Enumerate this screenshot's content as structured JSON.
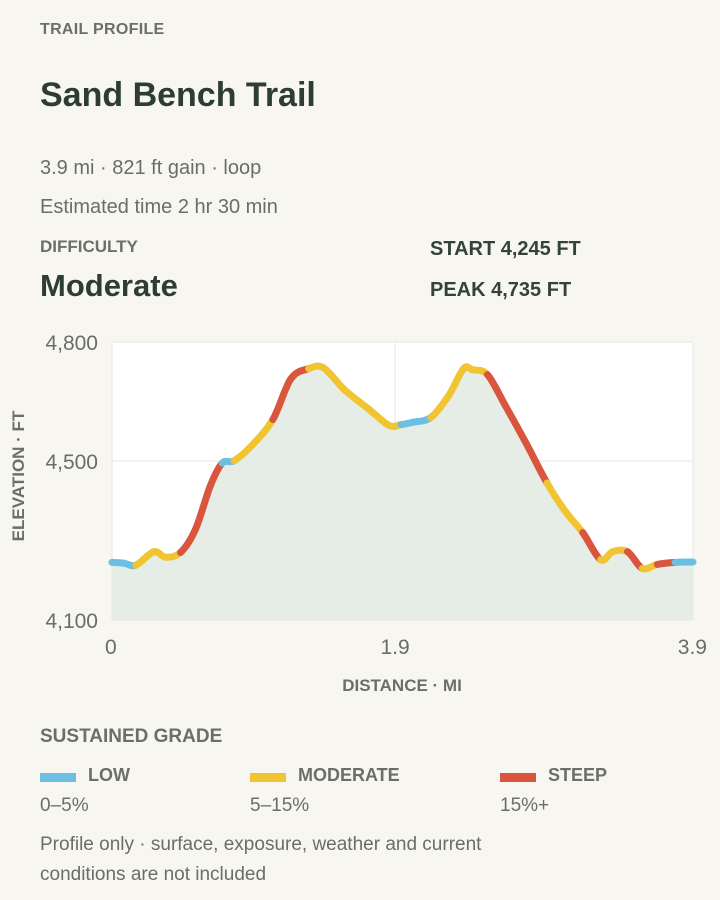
{
  "header": {
    "eyebrow": "TRAIL PROFILE",
    "title": "Sand Bench Trail",
    "summary": "3.9 mi · 821 ft gain · loop",
    "estimated_time": "Estimated time 2 hr 30 min"
  },
  "difficulty": {
    "label": "DIFFICULTY",
    "value": "Moderate"
  },
  "stats": {
    "start": "START 4,245 FT",
    "peak": "PEAK 4,735 FT"
  },
  "chart_data": {
    "type": "line",
    "title": "",
    "xlabel": "DISTANCE · MI",
    "ylabel": "ELEVATION · FT",
    "xlim": [
      0,
      3.9
    ],
    "ylim": [
      4100,
      4800
    ],
    "x_ticks": [
      0,
      1.9,
      3.9
    ],
    "x_tick_labels": [
      "0",
      "1.9",
      "3.9"
    ],
    "y_ticks": [
      4100,
      4500,
      4800
    ],
    "y_tick_labels": [
      "4,100",
      "4,500",
      "4,800"
    ],
    "grid": true,
    "area_fill": true,
    "line_colors_by_grade": {
      "low": "#6cbfe3",
      "moderate": "#f1c532",
      "steep": "#d9553e"
    },
    "x": [
      0,
      0.08,
      0.16,
      0.28,
      0.36,
      0.46,
      0.56,
      0.66,
      0.74,
      0.82,
      0.94,
      1.08,
      1.2,
      1.32,
      1.42,
      1.56,
      1.72,
      1.86,
      1.94,
      2.02,
      2.14,
      2.26,
      2.36,
      2.42,
      2.52,
      2.64,
      2.78,
      2.92,
      3.04,
      3.16,
      3.28,
      3.36,
      3.46,
      3.56,
      3.66,
      3.78,
      3.9
    ],
    "y": [
      4245,
      4243,
      4238,
      4272,
      4258,
      4270,
      4328,
      4438,
      4495,
      4501,
      4540,
      4605,
      4707,
      4733,
      4735,
      4680,
      4632,
      4590,
      4592,
      4598,
      4610,
      4665,
      4733,
      4730,
      4718,
      4640,
      4545,
      4445,
      4375,
      4320,
      4252,
      4272,
      4272,
      4230,
      4240,
      4245,
      4246
    ],
    "grade": [
      "low",
      "low",
      "moderate",
      "moderate",
      "moderate",
      "steep",
      "steep",
      "steep",
      "low",
      "moderate",
      "moderate",
      "steep",
      "steep",
      "moderate",
      "moderate",
      "moderate",
      "moderate",
      "moderate",
      "low",
      "low",
      "moderate",
      "moderate",
      "moderate",
      "moderate",
      "steep",
      "steep",
      "steep",
      "moderate",
      "moderate",
      "steep",
      "moderate",
      "moderate",
      "steep",
      "moderate",
      "steep",
      "low",
      "low"
    ]
  },
  "legend": {
    "title": "SUSTAINED GRADE",
    "items": [
      {
        "name": "LOW",
        "range": "0–5%",
        "color": "#6cbfe3"
      },
      {
        "name": "MODERATE",
        "range": "5–15%",
        "color": "#f1c532"
      },
      {
        "name": "STEEP",
        "range": "15%+",
        "color": "#d9553e"
      }
    ]
  },
  "footnote": "Profile only · surface, exposure, weather and current conditions are not included"
}
